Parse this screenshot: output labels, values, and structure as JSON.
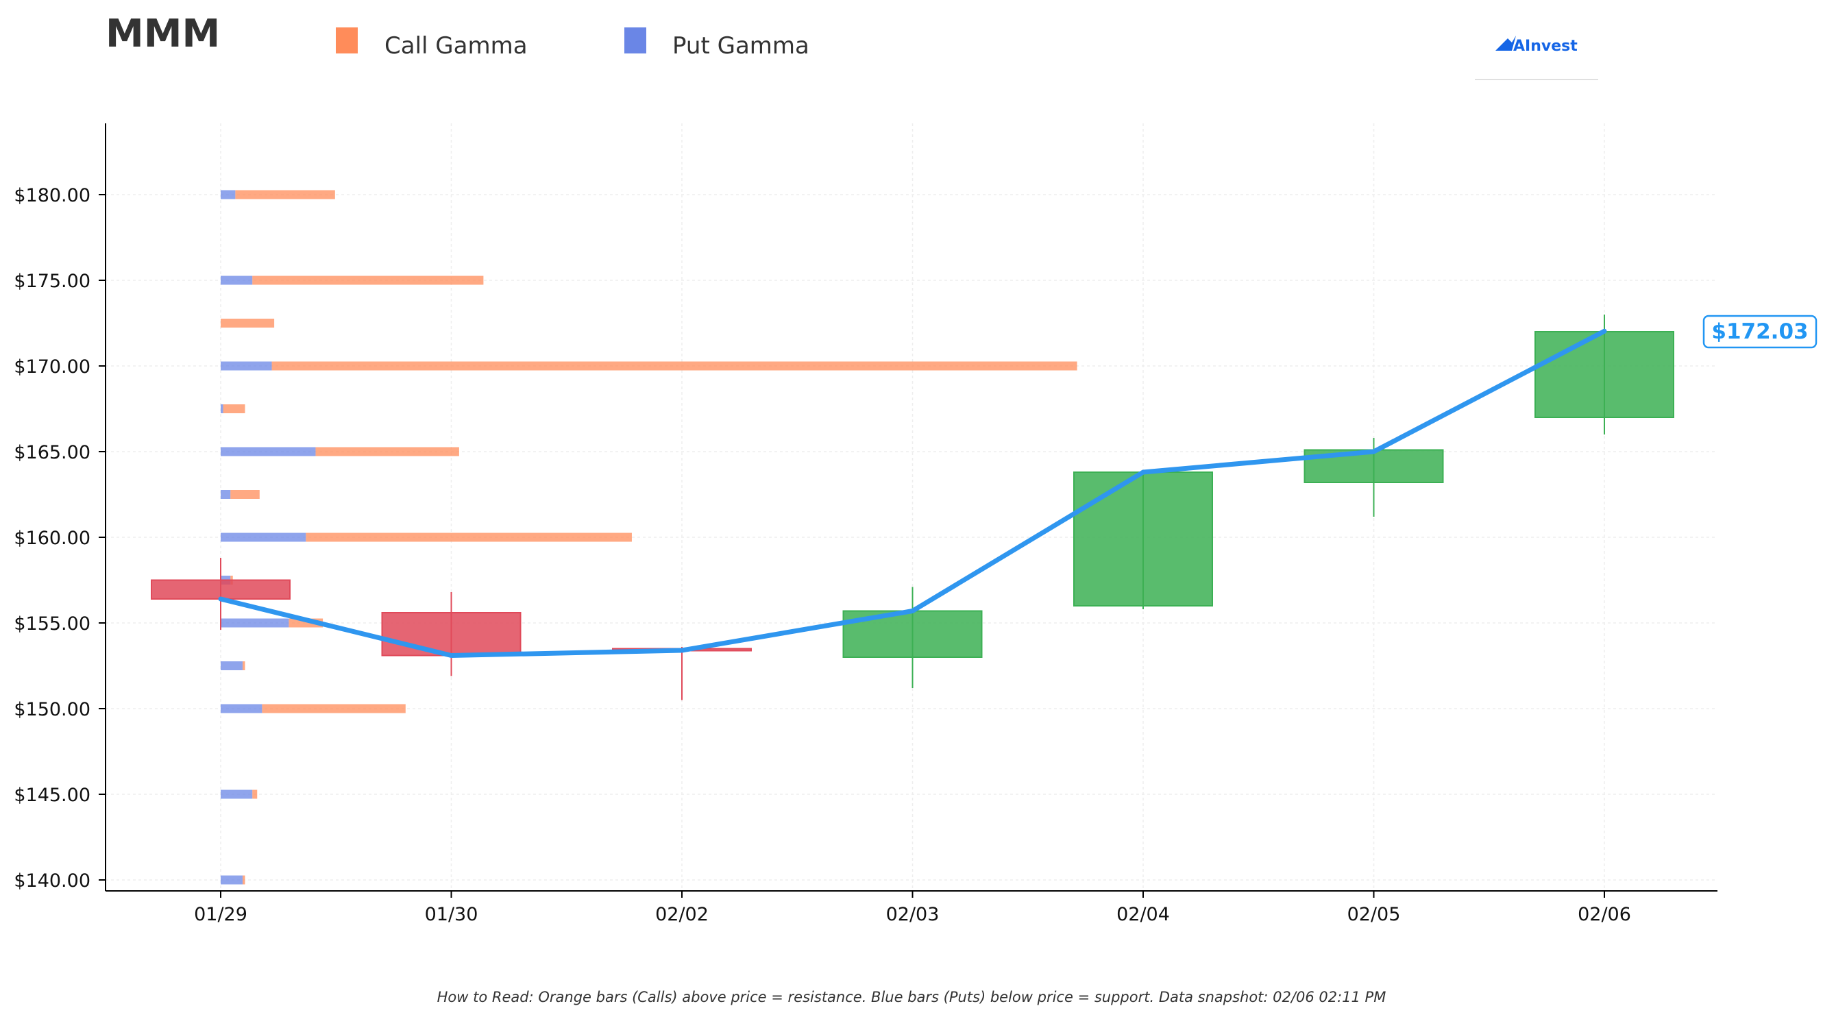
{
  "chart_data": {
    "type": "candlestick",
    "title": "MMM",
    "legend": [
      {
        "name": "Call Gamma",
        "color": "#ff8c5a"
      },
      {
        "name": "Put Gamma",
        "color": "#6a86e6"
      }
    ],
    "legend_placement": "top",
    "brand": "AInvest",
    "categories": [
      "01/29",
      "01/30",
      "02/02",
      "02/03",
      "02/04",
      "02/05",
      "02/06"
    ],
    "ylim": [
      139.5,
      184.5
    ],
    "yticks": [
      140,
      145,
      150,
      155,
      160,
      165,
      170,
      175,
      180
    ],
    "ytick_labels": [
      "$140.00",
      "$145.00",
      "$150.00",
      "$155.00",
      "$160.00",
      "$165.00",
      "$170.00",
      "$175.00",
      "$180.00"
    ],
    "grid": true,
    "candles": [
      {
        "date": "01/29",
        "open": 157.5,
        "close": 156.4,
        "high": 158.8,
        "low": 154.6
      },
      {
        "date": "01/30",
        "open": 155.6,
        "close": 153.1,
        "high": 156.8,
        "low": 151.9
      },
      {
        "date": "02/02",
        "open": 153.5,
        "close": 153.4,
        "high": 153.6,
        "low": 150.5
      },
      {
        "date": "02/03",
        "open": 153.0,
        "close": 155.7,
        "high": 157.1,
        "low": 151.2
      },
      {
        "date": "02/04",
        "open": 156.0,
        "close": 163.8,
        "high": 163.8,
        "low": 155.8
      },
      {
        "date": "02/05",
        "open": 163.2,
        "close": 165.1,
        "high": 165.8,
        "low": 161.2
      },
      {
        "date": "02/06",
        "open": 167.0,
        "close": 172.0,
        "high": 173.0,
        "low": 166.0
      }
    ],
    "close_line": [
      156.4,
      153.1,
      153.4,
      155.7,
      163.8,
      165.0,
      172.03
    ],
    "last_price_label": "$172.03",
    "gamma_bars": [
      {
        "strike": 140.0,
        "put": 0.09,
        "call": 0.01
      },
      {
        "strike": 145.0,
        "put": 0.13,
        "call": 0.02
      },
      {
        "strike": 150.0,
        "put": 0.17,
        "call": 0.59
      },
      {
        "strike": 152.5,
        "put": 0.09,
        "call": 0.01
      },
      {
        "strike": 155.0,
        "put": 0.28,
        "call": 0.14
      },
      {
        "strike": 157.5,
        "put": 0.04,
        "call": 0.01
      },
      {
        "strike": 160.0,
        "put": 0.35,
        "call": 1.34
      },
      {
        "strike": 162.5,
        "put": 0.04,
        "call": 0.12
      },
      {
        "strike": 165.0,
        "put": 0.39,
        "call": 0.59
      },
      {
        "strike": 167.5,
        "put": 0.01,
        "call": 0.09
      },
      {
        "strike": 170.0,
        "put": 0.21,
        "call": 3.31
      },
      {
        "strike": 172.5,
        "put": 0.0,
        "call": 0.22
      },
      {
        "strike": 175.0,
        "put": 0.13,
        "call": 0.95
      },
      {
        "strike": 180.0,
        "put": 0.06,
        "call": 0.41
      }
    ],
    "colors": {
      "call_bar": "#ff8c5a",
      "put_bar": "#6a86e6",
      "up_candle": "#3cb054",
      "down_candle": "#e04a5a",
      "close_line": "#2f96ef"
    }
  },
  "footnote": "How to Read: Orange bars (Calls) above price = resistance. Blue bars (Puts) below price = support. Data snapshot: 02/06 02:11 PM"
}
